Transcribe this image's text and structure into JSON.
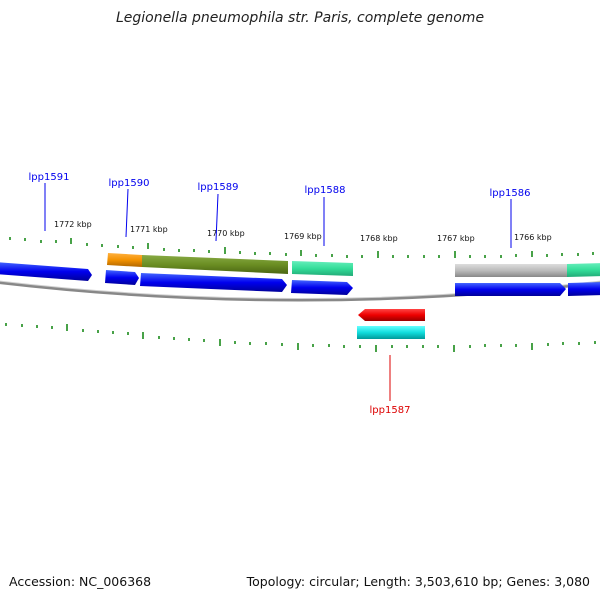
{
  "title": "Legionella pneumophila str. Paris, complete genome",
  "footer": {
    "accession": "Accession: NC_006368",
    "summary": "Topology: circular; Length: 3,503,610 bp; Genes: 3,080"
  },
  "colors": {
    "forward": "#0000ee",
    "reverse_label": "#dd0000",
    "tick": "#1a8a1a",
    "backbone": "#888888"
  },
  "ruler": [
    "1772 kbp",
    "1771 kbp",
    "1770 kbp",
    "1769 kbp",
    "1768 kbp",
    "1767 kbp",
    "1766 kbp"
  ],
  "gene_labels": [
    {
      "text": "lpp1591",
      "strand": "forward"
    },
    {
      "text": "lpp1590",
      "strand": "forward"
    },
    {
      "text": "lpp1589",
      "strand": "forward"
    },
    {
      "text": "lpp1588",
      "strand": "forward"
    },
    {
      "text": "lpp1586",
      "strand": "forward"
    },
    {
      "text": "lpp1587",
      "strand": "reverse"
    }
  ],
  "feature_tracks": [
    {
      "name": "orange",
      "color": "#f39200"
    },
    {
      "name": "olive",
      "color": "#6b8e23"
    },
    {
      "name": "sea-green",
      "color": "#33dd99"
    },
    {
      "name": "gray",
      "color": "#bbbbbb"
    },
    {
      "name": "red",
      "color": "#ee0000"
    },
    {
      "name": "cyan",
      "color": "#11dddd"
    }
  ]
}
